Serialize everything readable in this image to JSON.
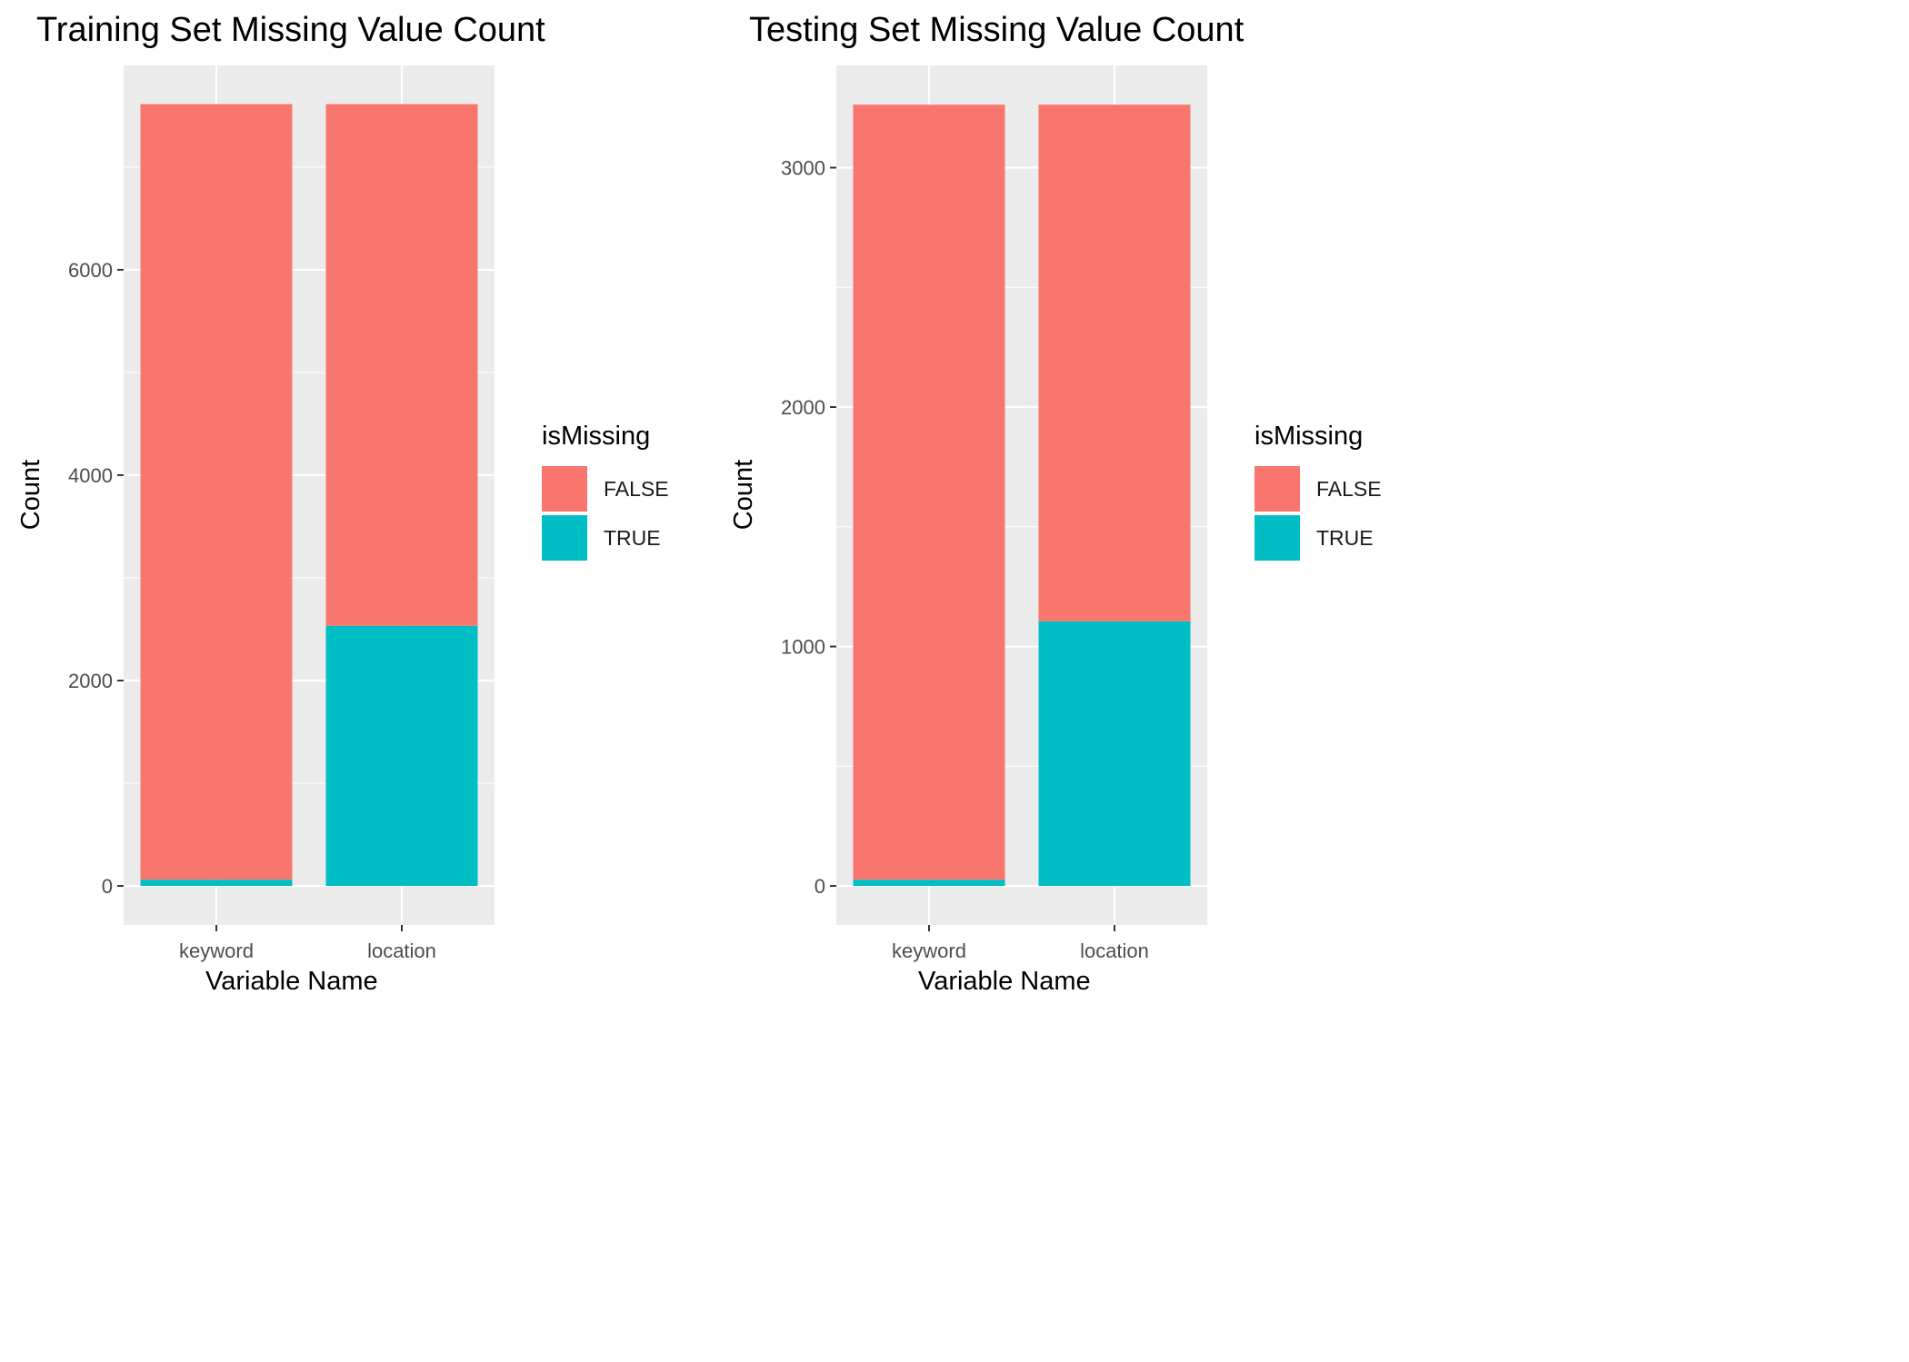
{
  "chart_data": [
    {
      "type": "bar",
      "stacked": true,
      "title": "Training Set Missing Value Count",
      "xlabel": "Variable Name",
      "ylabel": "Count",
      "categories": [
        "keyword",
        "location"
      ],
      "ylim": [
        -380,
        7990
      ],
      "yticks": [
        0,
        2000,
        4000,
        6000
      ],
      "grid": true,
      "series": [
        {
          "name": "FALSE",
          "color": "#F8766D",
          "values": [
            7552,
            5080
          ]
        },
        {
          "name": "TRUE",
          "color": "#00BFC4",
          "values": [
            61,
            2533
          ]
        }
      ],
      "legend": {
        "title": "isMissing",
        "placement": "right"
      }
    },
    {
      "type": "bar",
      "stacked": true,
      "title": "Testing Set Missing Value Count",
      "xlabel": "Variable Name",
      "ylabel": "Count",
      "categories": [
        "keyword",
        "location"
      ],
      "ylim": [
        -163,
        3427
      ],
      "yticks": [
        0,
        1000,
        2000,
        3000
      ],
      "grid": true,
      "series": [
        {
          "name": "FALSE",
          "color": "#F8766D",
          "values": [
            3237,
            2158
          ]
        },
        {
          "name": "TRUE",
          "color": "#00BFC4",
          "values": [
            26,
            1105
          ]
        }
      ],
      "legend": {
        "title": "isMissing",
        "placement": "right"
      }
    }
  ]
}
